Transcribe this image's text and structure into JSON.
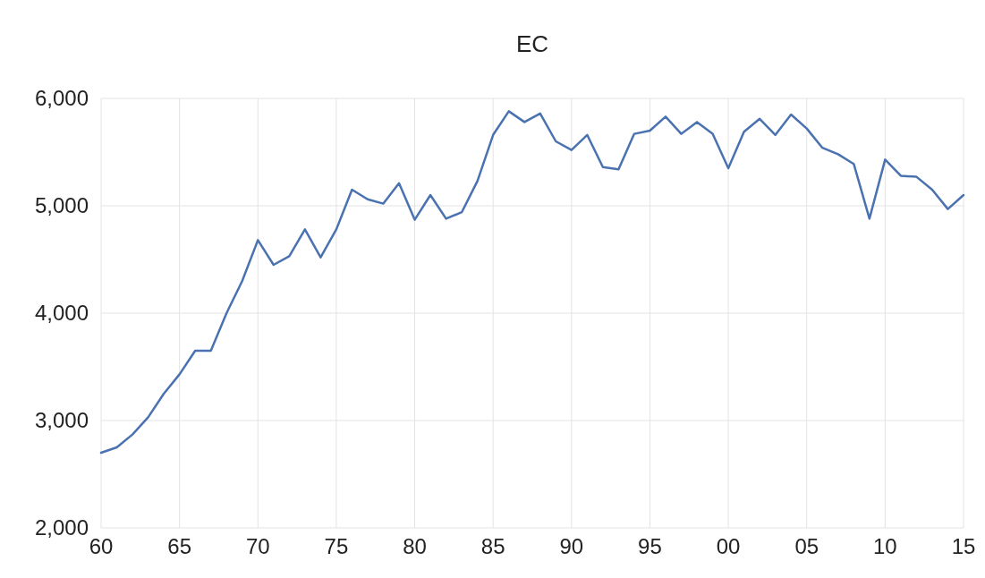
{
  "chart_data": {
    "type": "line",
    "title": "EC",
    "x": [
      1960,
      1961,
      1962,
      1963,
      1964,
      1965,
      1966,
      1967,
      1968,
      1969,
      1970,
      1971,
      1972,
      1973,
      1974,
      1975,
      1976,
      1977,
      1978,
      1979,
      1980,
      1981,
      1982,
      1983,
      1984,
      1985,
      1986,
      1987,
      1988,
      1989,
      1990,
      1991,
      1992,
      1993,
      1994,
      1995,
      1996,
      1997,
      1998,
      1999,
      2000,
      2001,
      2002,
      2003,
      2004,
      2005,
      2006,
      2007,
      2008,
      2009,
      2010,
      2011,
      2012,
      2013,
      2014,
      2015
    ],
    "series": [
      {
        "color": "#4a72b0",
        "values": [
          2700,
          2750,
          2870,
          3030,
          3250,
          3430,
          3650,
          3650,
          4000,
          4300,
          4680,
          4450,
          4530,
          4780,
          4520,
          4780,
          5150,
          5060,
          5020,
          5210,
          4870,
          5100,
          4880,
          4940,
          5230,
          5660,
          5880,
          5780,
          5860,
          5600,
          5520,
          5660,
          5360,
          5340,
          5670,
          5700,
          5830,
          5670,
          5780,
          5670,
          5350,
          5690,
          5810,
          5660,
          5850,
          5720,
          5540,
          5480,
          5390,
          4880,
          5430,
          5280,
          5270,
          5150,
          4970,
          5100
        ]
      }
    ],
    "xlim": [
      1960,
      2015
    ],
    "xticks": [
      {
        "value": 1960,
        "label": "60"
      },
      {
        "value": 1965,
        "label": "65"
      },
      {
        "value": 1970,
        "label": "70"
      },
      {
        "value": 1975,
        "label": "75"
      },
      {
        "value": 1980,
        "label": "80"
      },
      {
        "value": 1985,
        "label": "85"
      },
      {
        "value": 1990,
        "label": "90"
      },
      {
        "value": 1995,
        "label": "95"
      },
      {
        "value": 2000,
        "label": "00"
      },
      {
        "value": 2005,
        "label": "05"
      },
      {
        "value": 2010,
        "label": "10"
      },
      {
        "value": 2015,
        "label": "15"
      }
    ],
    "ylim": [
      2000,
      6000
    ],
    "yticks": [
      {
        "value": 2000,
        "label": "2,000"
      },
      {
        "value": 3000,
        "label": "3,000"
      },
      {
        "value": 4000,
        "label": "4,000"
      },
      {
        "value": 5000,
        "label": "5,000"
      },
      {
        "value": 6000,
        "label": "6,000"
      }
    ],
    "grid": true,
    "marker": "none",
    "line_style": "solid"
  }
}
